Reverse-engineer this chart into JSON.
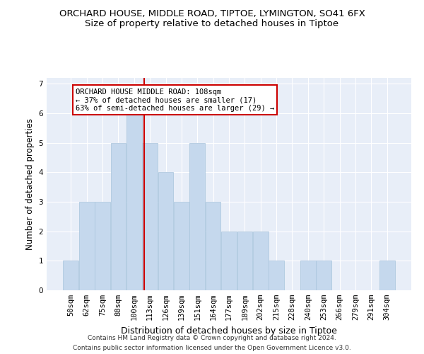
{
  "title": "ORCHARD HOUSE, MIDDLE ROAD, TIPTOE, LYMINGTON, SO41 6FX",
  "subtitle": "Size of property relative to detached houses in Tiptoe",
  "xlabel": "Distribution of detached houses by size in Tiptoe",
  "ylabel": "Number of detached properties",
  "categories": [
    "50sqm",
    "62sqm",
    "75sqm",
    "88sqm",
    "100sqm",
    "113sqm",
    "126sqm",
    "139sqm",
    "151sqm",
    "164sqm",
    "177sqm",
    "189sqm",
    "202sqm",
    "215sqm",
    "228sqm",
    "240sqm",
    "253sqm",
    "266sqm",
    "279sqm",
    "291sqm",
    "304sqm"
  ],
  "values": [
    1,
    3,
    3,
    5,
    6,
    5,
    4,
    3,
    5,
    3,
    2,
    2,
    2,
    1,
    0,
    1,
    1,
    0,
    0,
    0,
    1
  ],
  "bar_color": "#c5d8ed",
  "bar_edge_color": "#a8c4dc",
  "bar_width": 0.97,
  "vline_color": "#cc0000",
  "annotation_text": "ORCHARD HOUSE MIDDLE ROAD: 108sqm\n← 37% of detached houses are smaller (17)\n63% of semi-detached houses are larger (29) →",
  "annotation_box_color": "#ffffff",
  "annotation_box_edge": "#cc0000",
  "ylim": [
    0,
    7.2
  ],
  "yticks": [
    0,
    1,
    2,
    3,
    4,
    5,
    6,
    7
  ],
  "background_color": "#e8eef8",
  "footer_line1": "Contains HM Land Registry data © Crown copyright and database right 2024.",
  "footer_line2": "Contains public sector information licensed under the Open Government Licence v3.0.",
  "title_fontsize": 9.5,
  "subtitle_fontsize": 9.5,
  "xlabel_fontsize": 9,
  "ylabel_fontsize": 8.5,
  "tick_fontsize": 7.5,
  "footer_fontsize": 6.5,
  "annot_fontsize": 7.5
}
